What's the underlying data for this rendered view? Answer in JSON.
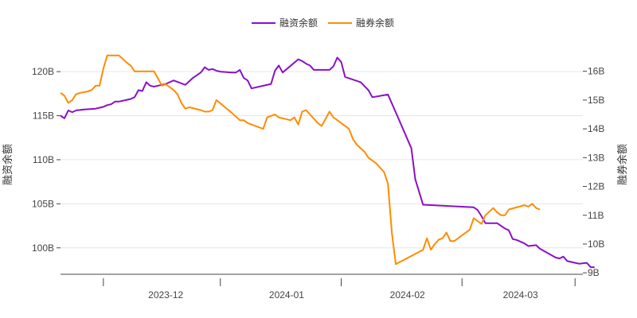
{
  "chart_data": {
    "type": "line",
    "title": "",
    "legend": {
      "position": "top-center"
    },
    "grid": true,
    "x_axis": {
      "ticks": [
        "2023-11-15",
        "2023-12-15",
        "2024-01-15",
        "2024-02-15",
        "2024-03-15"
      ],
      "labels": [
        {
          "date": "2023-12-01",
          "text": "2023-12"
        },
        {
          "date": "2024-01-01",
          "text": "2024-01"
        },
        {
          "date": "2024-02-01",
          "text": "2024-02"
        },
        {
          "date": "2024-03-01",
          "text": "2024-03"
        }
      ],
      "range": [
        "2023-11-04",
        "2024-03-17"
      ]
    },
    "y_left": {
      "title": "融资余额",
      "range": [
        97.0,
        123.8
      ],
      "ticks": [
        100,
        105,
        110,
        115,
        120
      ],
      "tick_labels": [
        "100B",
        "105B",
        "110B",
        "115B",
        "120B"
      ]
    },
    "y_right": {
      "title": "融券余额",
      "range": [
        8.95,
        17.15
      ],
      "ticks": [
        9,
        10,
        11,
        12,
        13,
        14,
        15,
        16
      ],
      "tick_labels": [
        "9B",
        "10B",
        "11B",
        "12B",
        "13B",
        "14B",
        "15B",
        "16B"
      ]
    },
    "series": [
      {
        "name": "融资余额",
        "axis": "left",
        "color": "#8a10c6",
        "points": [
          [
            "2023-11-04",
            115.0
          ],
          [
            "2023-11-05",
            114.7
          ],
          [
            "2023-11-06",
            115.6
          ],
          [
            "2023-11-07",
            115.4
          ],
          [
            "2023-11-08",
            115.6
          ],
          [
            "2023-11-10",
            115.7
          ],
          [
            "2023-11-13",
            115.8
          ],
          [
            "2023-11-14",
            115.9
          ],
          [
            "2023-11-15",
            116.0
          ],
          [
            "2023-11-16",
            116.2
          ],
          [
            "2023-11-17",
            116.3
          ],
          [
            "2023-11-18",
            116.6
          ],
          [
            "2023-11-19",
            116.6
          ],
          [
            "2023-11-20",
            116.7
          ],
          [
            "2023-11-21",
            116.8
          ],
          [
            "2023-11-22",
            116.9
          ],
          [
            "2023-11-23",
            117.1
          ],
          [
            "2023-11-24",
            117.9
          ],
          [
            "2023-11-25",
            117.8
          ],
          [
            "2023-11-26",
            118.8
          ],
          [
            "2023-11-27",
            118.4
          ],
          [
            "2023-11-28",
            118.3
          ],
          [
            "2023-11-29",
            118.4
          ],
          [
            "2023-11-30",
            118.5
          ],
          [
            "2023-12-01",
            118.6
          ],
          [
            "2023-12-02",
            118.8
          ],
          [
            "2023-12-03",
            119.0
          ],
          [
            "2023-12-06",
            118.5
          ],
          [
            "2023-12-08",
            119.3
          ],
          [
            "2023-12-10",
            119.9
          ],
          [
            "2023-12-11",
            120.5
          ],
          [
            "2023-12-12",
            120.2
          ],
          [
            "2023-12-13",
            120.3
          ],
          [
            "2023-12-14",
            120.1
          ],
          [
            "2023-12-15",
            120.0
          ],
          [
            "2023-12-18",
            119.9
          ],
          [
            "2023-12-19",
            119.9
          ],
          [
            "2023-12-20",
            120.2
          ],
          [
            "2023-12-21",
            119.3
          ],
          [
            "2023-12-22",
            119.0
          ],
          [
            "2023-12-23",
            118.1
          ],
          [
            "2023-12-28",
            118.6
          ],
          [
            "2023-12-29",
            120.1
          ],
          [
            "2023-12-30",
            120.7
          ],
          [
            "2023-12-31",
            119.9
          ],
          [
            "2024-01-04",
            121.4
          ],
          [
            "2024-01-05",
            121.2
          ],
          [
            "2024-01-06",
            120.9
          ],
          [
            "2024-01-07",
            120.7
          ],
          [
            "2024-01-08",
            120.2
          ],
          [
            "2024-01-12",
            120.2
          ],
          [
            "2024-01-13",
            120.6
          ],
          [
            "2024-01-14",
            121.6
          ],
          [
            "2024-01-15",
            121.1
          ],
          [
            "2024-01-16",
            119.4
          ],
          [
            "2024-01-20",
            118.8
          ],
          [
            "2024-01-22",
            117.9
          ],
          [
            "2024-01-23",
            117.1
          ],
          [
            "2024-01-27",
            117.4
          ],
          [
            "2024-01-29",
            115.4
          ],
          [
            "2024-02-02",
            111.3
          ],
          [
            "2024-02-03",
            107.8
          ],
          [
            "2024-02-05",
            104.9
          ],
          [
            "2024-02-18",
            104.6
          ],
          [
            "2024-02-19",
            104.3
          ],
          [
            "2024-02-20",
            103.6
          ],
          [
            "2024-02-21",
            102.8
          ],
          [
            "2024-02-24",
            102.8
          ],
          [
            "2024-02-26",
            102.2
          ],
          [
            "2024-02-27",
            102.0
          ],
          [
            "2024-02-28",
            101.0
          ],
          [
            "2024-02-29",
            100.9
          ],
          [
            "2024-03-02",
            100.5
          ],
          [
            "2024-03-03",
            100.2
          ],
          [
            "2024-03-05",
            100.3
          ],
          [
            "2024-03-06",
            99.9
          ],
          [
            "2024-03-10",
            98.9
          ],
          [
            "2024-03-11",
            98.8
          ],
          [
            "2024-03-12",
            99.0
          ],
          [
            "2024-03-13",
            98.5
          ],
          [
            "2024-03-15",
            98.3
          ],
          [
            "2024-03-16",
            98.2
          ],
          [
            "2024-03-18",
            98.3
          ],
          [
            "2024-03-19",
            97.8
          ],
          [
            "2024-03-20",
            97.8
          ]
        ]
      },
      {
        "name": "融券余额",
        "axis": "right",
        "color": "#ff8c00",
        "points": [
          [
            "2023-11-04",
            15.25
          ],
          [
            "2023-11-05",
            15.15
          ],
          [
            "2023-11-06",
            14.9
          ],
          [
            "2023-11-07",
            15.0
          ],
          [
            "2023-11-08",
            15.2
          ],
          [
            "2023-11-09",
            15.25
          ],
          [
            "2023-11-11",
            15.3
          ],
          [
            "2023-11-12",
            15.35
          ],
          [
            "2023-11-13",
            15.5
          ],
          [
            "2023-11-14",
            15.5
          ],
          [
            "2023-11-15",
            16.1
          ],
          [
            "2023-11-16",
            16.55
          ],
          [
            "2023-11-17",
            16.55
          ],
          [
            "2023-11-18",
            16.55
          ],
          [
            "2023-11-19",
            16.55
          ],
          [
            "2023-11-21",
            16.3
          ],
          [
            "2023-11-22",
            16.2
          ],
          [
            "2023-11-23",
            16.0
          ],
          [
            "2023-11-24",
            16.0
          ],
          [
            "2023-11-28",
            16.0
          ],
          [
            "2023-11-29",
            15.75
          ],
          [
            "2023-11-30",
            15.5
          ],
          [
            "2023-12-01",
            15.55
          ],
          [
            "2023-12-02",
            15.45
          ],
          [
            "2023-12-03",
            15.35
          ],
          [
            "2023-12-04",
            15.2
          ],
          [
            "2023-12-05",
            14.9
          ],
          [
            "2023-12-06",
            14.7
          ],
          [
            "2023-12-07",
            14.75
          ],
          [
            "2023-12-10",
            14.65
          ],
          [
            "2023-12-11",
            14.6
          ],
          [
            "2023-12-12",
            14.6
          ],
          [
            "2023-12-13",
            14.65
          ],
          [
            "2023-12-14",
            15.0
          ],
          [
            "2023-12-18",
            14.55
          ],
          [
            "2023-12-20",
            14.3
          ],
          [
            "2023-12-21",
            14.3
          ],
          [
            "2023-12-22",
            14.2
          ],
          [
            "2023-12-26",
            14.0
          ],
          [
            "2023-12-27",
            14.4
          ],
          [
            "2023-12-29",
            14.5
          ],
          [
            "2023-12-30",
            14.4
          ],
          [
            "2024-01-02",
            14.3
          ],
          [
            "2024-01-03",
            14.4
          ],
          [
            "2024-01-04",
            14.15
          ],
          [
            "2024-01-05",
            14.6
          ],
          [
            "2024-01-06",
            14.65
          ],
          [
            "2024-01-09",
            14.2
          ],
          [
            "2024-01-10",
            14.1
          ],
          [
            "2024-01-12",
            14.6
          ],
          [
            "2024-01-13",
            14.4
          ],
          [
            "2024-01-15",
            14.2
          ],
          [
            "2024-01-17",
            14.0
          ],
          [
            "2024-01-18",
            13.65
          ],
          [
            "2024-01-19",
            13.45
          ],
          [
            "2024-01-21",
            13.2
          ],
          [
            "2024-01-22",
            13.0
          ],
          [
            "2024-01-24",
            12.8
          ],
          [
            "2024-01-26",
            12.5
          ],
          [
            "2024-01-27",
            12.1
          ],
          [
            "2024-01-28",
            10.4
          ],
          [
            "2024-01-29",
            9.3
          ],
          [
            "2024-02-05",
            9.8
          ],
          [
            "2024-02-06",
            10.2
          ],
          [
            "2024-02-07",
            9.8
          ],
          [
            "2024-02-08",
            10.0
          ],
          [
            "2024-02-09",
            10.15
          ],
          [
            "2024-02-10",
            10.2
          ],
          [
            "2024-02-11",
            10.4
          ],
          [
            "2024-02-12",
            10.1
          ],
          [
            "2024-02-13",
            10.1
          ],
          [
            "2024-02-15",
            10.3
          ],
          [
            "2024-02-17",
            10.5
          ],
          [
            "2024-02-18",
            10.9
          ],
          [
            "2024-02-19",
            10.8
          ],
          [
            "2024-02-20",
            10.7
          ],
          [
            "2024-02-21",
            11.0
          ],
          [
            "2024-02-23",
            11.25
          ],
          [
            "2024-02-24",
            11.1
          ],
          [
            "2024-02-25",
            11.0
          ],
          [
            "2024-02-26",
            11.0
          ],
          [
            "2024-02-27",
            11.2
          ],
          [
            "2024-03-02",
            11.35
          ],
          [
            "2024-03-03",
            11.3
          ],
          [
            "2024-03-04",
            11.4
          ],
          [
            "2024-03-05",
            11.25
          ],
          [
            "2024-03-06",
            11.2
          ]
        ]
      }
    ]
  }
}
